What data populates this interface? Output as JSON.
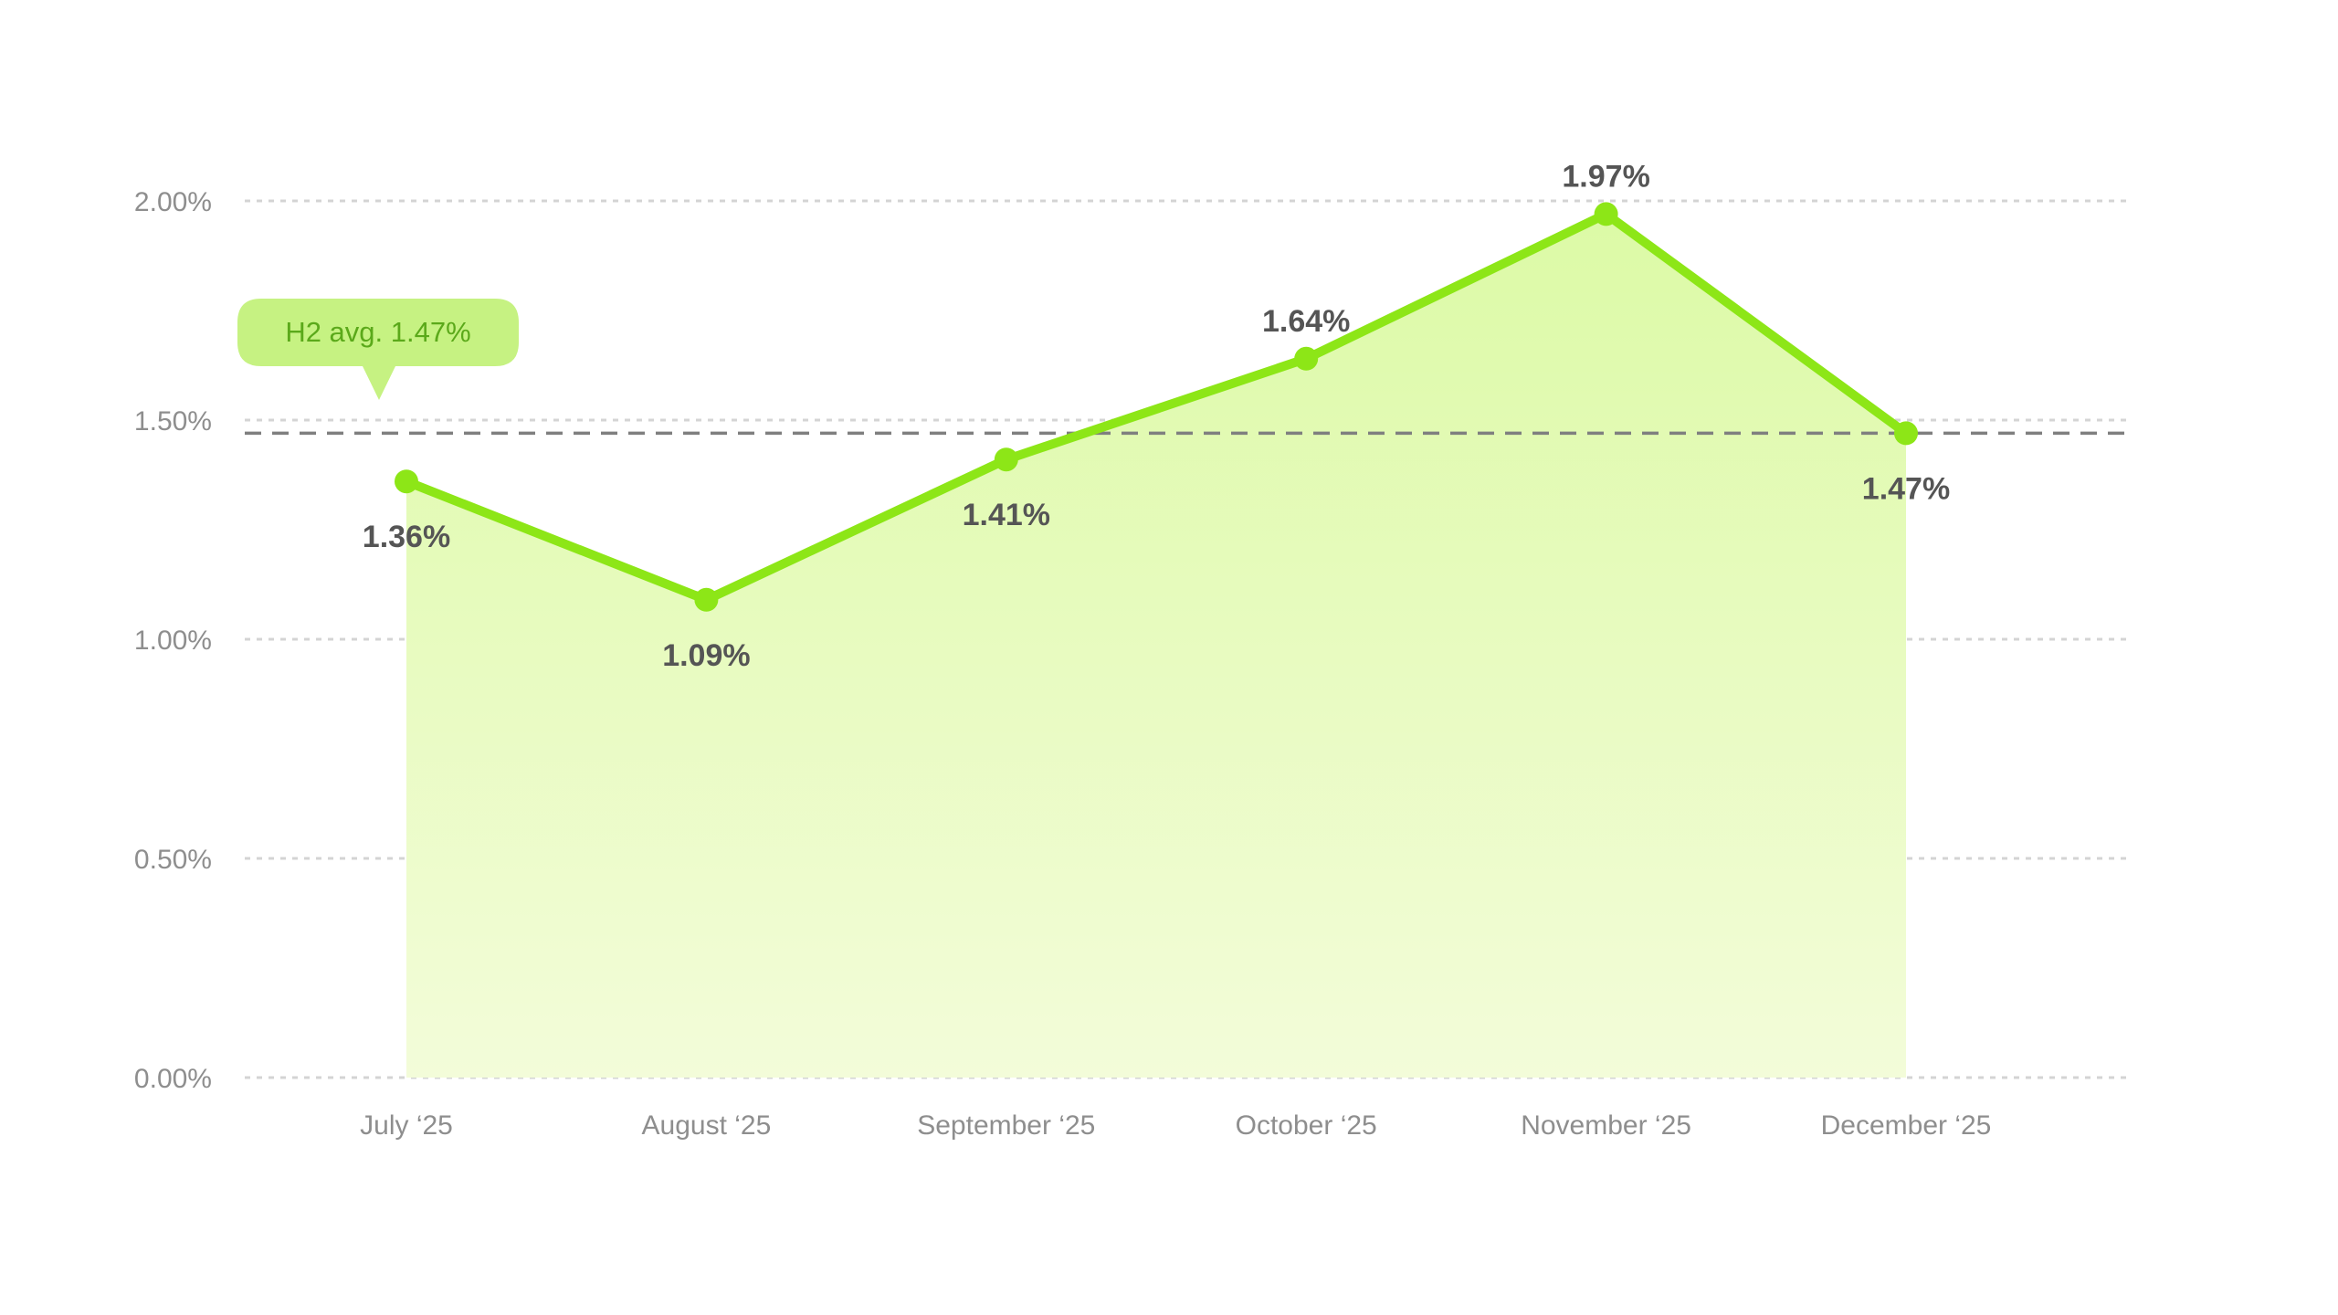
{
  "chart_data": {
    "type": "area",
    "categories": [
      "July ‘25",
      "August ‘25",
      "September ‘25",
      "October ‘25",
      "November ‘25",
      "December ‘25"
    ],
    "series": [
      {
        "values": [
          1.36,
          1.09,
          1.41,
          1.64,
          1.97,
          1.47
        ],
        "data_labels": [
          "1.36%",
          "1.09%",
          "1.41%",
          "1.64%",
          "1.97%",
          "1.47%"
        ],
        "color": "#8de617"
      }
    ],
    "y_ticks": [
      0,
      0.5,
      1.0,
      1.5,
      2.0
    ],
    "y_tick_labels": [
      "0.00%",
      "0.50%",
      "1.00%",
      "1.50%",
      "2.00%"
    ],
    "ylim": [
      0,
      2.0
    ],
    "grid": true,
    "average": {
      "value": 1.47,
      "label": "H2 avg. 1.47%"
    },
    "colors": {
      "line": "#8de617",
      "area_top": "#dcfaa6",
      "area_bottom": "#f3fcd9",
      "callout_bg": "#c6f282",
      "callout_text": "#5ba91a",
      "avg_line": "#7f7f7f"
    }
  }
}
